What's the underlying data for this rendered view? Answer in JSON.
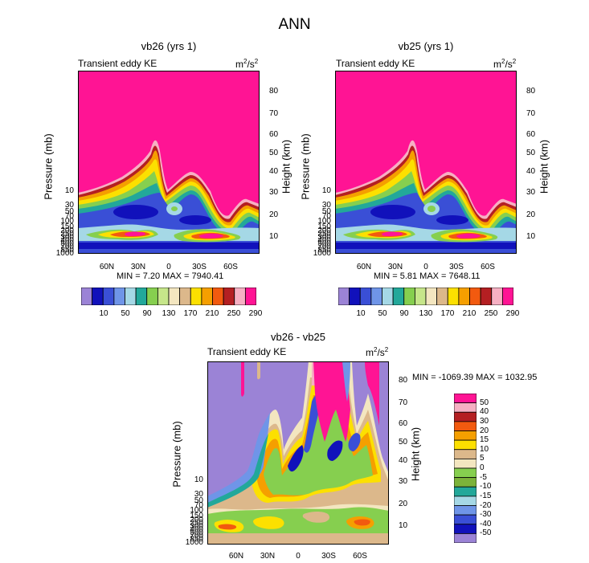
{
  "main_title": "ANN",
  "units": "m",
  "units_sup": "2",
  "units_tail": "/s",
  "units_sup2": "2",
  "chart_data": [
    {
      "type": "heatmap",
      "id": "p1",
      "title": "vb26 (yrs 1)",
      "subtitle": "Transient eddy KE",
      "ylabel": "Pressure (mb)",
      "ylabel_right": "Height (km)",
      "pressure_ticks": [
        "10",
        "30",
        "50",
        "70",
        "100",
        "150",
        "200",
        "250",
        "300",
        "400",
        "500",
        "700",
        "850",
        "1000"
      ],
      "height_ticks": [
        "80",
        "70",
        "60",
        "50",
        "40",
        "30",
        "20",
        "10"
      ],
      "lat_ticks": [
        "60N",
        "30N",
        "0",
        "30S",
        "60S"
      ],
      "min_label": "MIN =   7.20  MAX = 7940.41",
      "colorbar_labels": [
        "10",
        "50",
        "90",
        "130",
        "170",
        "210",
        "250",
        "290"
      ]
    },
    {
      "type": "heatmap",
      "id": "p2",
      "title": "vb25 (yrs 1)",
      "subtitle": "Transient eddy KE",
      "ylabel": "Pressure (mb)",
      "ylabel_right": "Height (km)",
      "pressure_ticks": [
        "10",
        "30",
        "50",
        "70",
        "100",
        "150",
        "200",
        "250",
        "300",
        "400",
        "500",
        "700",
        "850",
        "1000"
      ],
      "height_ticks": [
        "80",
        "70",
        "60",
        "50",
        "40",
        "30",
        "20",
        "10"
      ],
      "lat_ticks": [
        "60N",
        "30N",
        "0",
        "30S",
        "60S"
      ],
      "min_label": "MIN =   5.81  MAX = 7648.11",
      "colorbar_labels": [
        "10",
        "50",
        "90",
        "130",
        "170",
        "210",
        "250",
        "290"
      ]
    },
    {
      "type": "heatmap",
      "id": "p3",
      "title": "vb26 - vb25",
      "subtitle": "Transient eddy KE",
      "ylabel": "Pressure (mb)",
      "ylabel_right": "Height (km)",
      "pressure_ticks": [
        "10",
        "30",
        "50",
        "70",
        "100",
        "150",
        "200",
        "250",
        "300",
        "400",
        "500",
        "700",
        "850",
        "1000"
      ],
      "height_ticks": [
        "80",
        "70",
        "60",
        "50",
        "40",
        "30",
        "20",
        "10"
      ],
      "lat_ticks": [
        "60N",
        "30N",
        "0",
        "30S",
        "60S"
      ],
      "min_label": "MIN = -1069.39  MAX = 1032.95",
      "colorbar_labels": [
        "50",
        "40",
        "30",
        "20",
        "15",
        "10",
        "5",
        "0",
        "-5",
        "-10",
        "-15",
        "-20",
        "-30",
        "-40",
        "-50"
      ]
    }
  ],
  "palette_abs": [
    "#9b83d6",
    "#1111bb",
    "#3a4fd6",
    "#6f95e8",
    "#a5d8e6",
    "#22a89a",
    "#86cf4f",
    "#c6e68a",
    "#f3e6c0",
    "#dcb88b",
    "#fce000",
    "#f59f00",
    "#f25a0f",
    "#b41f22",
    "#f6b0c3",
    "#ff1494"
  ],
  "palette_diff": [
    "#ff1494",
    "#f6b0c3",
    "#b41f22",
    "#f25a0f",
    "#f59f00",
    "#fce000",
    "#dcb88b",
    "#f3e6c0",
    "#86cf4f",
    "#7cb33a",
    "#22a89a",
    "#a5d8e6",
    "#6f95e8",
    "#3a4fd6",
    "#1111bb",
    "#9b83d6"
  ]
}
